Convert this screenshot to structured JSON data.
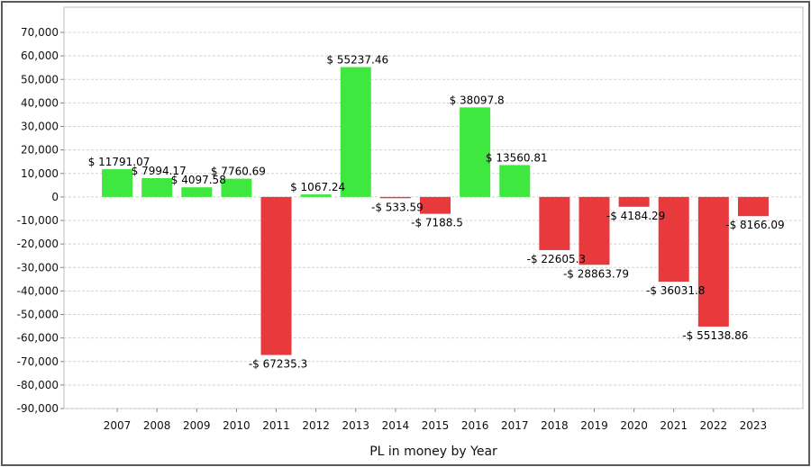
{
  "chart_data": {
    "type": "bar",
    "xlabel": "PL in money by Year",
    "ylabel": "",
    "ylim": [
      -90000,
      70000
    ],
    "ytick_step": 10000,
    "grid": true,
    "categories": [
      "2007",
      "2008",
      "2009",
      "2010",
      "2011",
      "2012",
      "2013",
      "2014",
      "2015",
      "2016",
      "2017",
      "2018",
      "2019",
      "2020",
      "2021",
      "2022",
      "2023"
    ],
    "values": [
      11791.07,
      7994.17,
      4097.58,
      7760.69,
      -67235.3,
      1067.24,
      55237.46,
      -533.59,
      -7188.5,
      38097.8,
      13560.81,
      -22605.3,
      -28863.79,
      -4184.29,
      -36031.8,
      -55138.86,
      -8166.09
    ],
    "data_labels": [
      "$ 11791.07",
      "$ 7994.17",
      "$ 4097.58",
      "$ 7760.69",
      "-$ 67235.3",
      "$ 1067.24",
      "$ 55237.46",
      "-$ 533.59",
      "-$ 7188.5",
      "$ 38097.8",
      "$ 13560.81",
      "-$ 22605.3",
      "-$ 28863.79",
      "-$ 4184.29",
      "-$ 36031.8",
      "-$ 55138.86",
      "-$ 8166.09"
    ],
    "y_tick_labels": [
      "70,000",
      "60,000",
      "50,000",
      "40,000",
      "30,000",
      "20,000",
      "10,000",
      "0",
      "-10,000",
      "-20,000",
      "-30,000",
      "-40,000",
      "-50,000",
      "-60,000",
      "-70,000",
      "-80,000",
      "-90,000"
    ],
    "colors": {
      "positive": "#3ee83e",
      "negative": "#e8393c",
      "axis": "#888888",
      "grid": "#d4d4d4"
    }
  }
}
